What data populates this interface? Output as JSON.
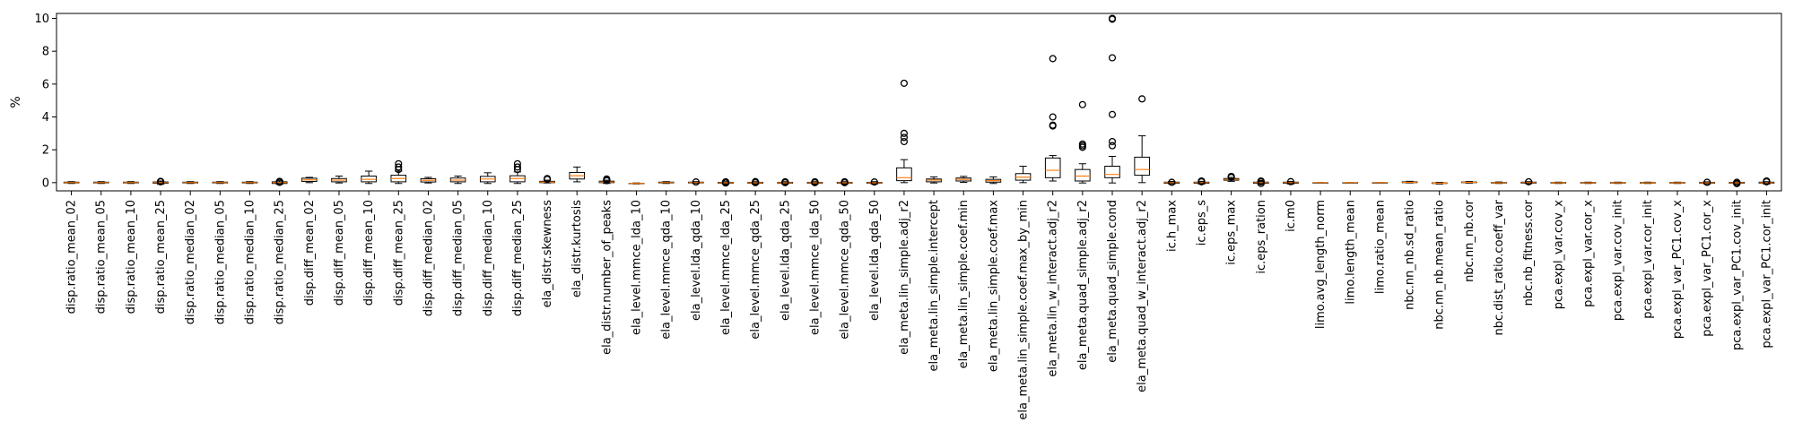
{
  "chart_data": {
    "type": "box",
    "ylabel": "%",
    "ylim": [
      -0.5,
      10.3
    ],
    "yticks": [
      0,
      2,
      4,
      6,
      8,
      10
    ],
    "grid": false,
    "colors": {
      "box": "#000000",
      "median": "#ff7f0e",
      "flier": "#000000"
    },
    "categories": [
      "disp.ratio_mean_02",
      "disp.ratio_mean_05",
      "disp.ratio_mean_10",
      "disp.ratio_mean_25",
      "disp.ratio_median_02",
      "disp.ratio_median_05",
      "disp.ratio_median_10",
      "disp.ratio_median_25",
      "disp.diff_mean_02",
      "disp.diff_mean_05",
      "disp.diff_mean_10",
      "disp.diff_mean_25",
      "disp.diff_median_02",
      "disp.diff_median_05",
      "disp.diff_median_10",
      "disp.diff_median_25",
      "ela_distr.skewness",
      "ela_distr.kurtosis",
      "ela_distr.number_of_peaks",
      "ela_level.mmce_lda_10",
      "ela_level.mmce_qda_10",
      "ela_level.lda_qda_10",
      "ela_level.mmce_lda_25",
      "ela_level.mmce_qda_25",
      "ela_level.lda_qda_25",
      "ela_level.mmce_lda_50",
      "ela_level.mmce_qda_50",
      "ela_level.lda_qda_50",
      "ela_meta.lin_simple.adj_r2",
      "ela_meta.lin_simple.intercept",
      "ela_meta.lin_simple.coef.min",
      "ela_meta.lin_simple.coef.max",
      "ela_meta.lin_simple.coef.max_by_min",
      "ela_meta.lin_w_interact.adj_r2",
      "ela_meta.quad_simple.adj_r2",
      "ela_meta.quad_simple.cond",
      "ela_meta.quad_w_interact.adj_r2",
      "ic.h_max",
      "ic.eps_s",
      "ic.eps_max",
      "ic.eps_ration",
      "ic.m0",
      "limo.avg_length_norm",
      "limo.length_mean",
      "limo.ratio_mean",
      "nbc.nn_nb.sd_ratio",
      "nbc.nn_nb.mean_ratio",
      "nbc.nn_nb.cor",
      "nbc.dist_ratio.coeff_var",
      "nbc.nb_fitness.cor",
      "pca.expl_var.cov_x",
      "pca.expl_var.cor_x",
      "pca.expl_var.cov_init",
      "pca.expl_var.cor_init",
      "pca.expl_var_PC1.cov_x",
      "pca.expl_var_PC1.cor_x",
      "pca.expl_var_PC1.cov_init",
      "pca.expl_var_PC1.cor_init"
    ],
    "boxes": [
      {
        "whislo": -0.05,
        "q1": -0.02,
        "med": 0.0,
        "q3": 0.03,
        "whishi": 0.06,
        "fliers": []
      },
      {
        "whislo": -0.05,
        "q1": -0.02,
        "med": 0.0,
        "q3": 0.03,
        "whishi": 0.06,
        "fliers": []
      },
      {
        "whislo": -0.05,
        "q1": -0.02,
        "med": 0.0,
        "q3": 0.03,
        "whishi": 0.06,
        "fliers": []
      },
      {
        "whislo": -0.1,
        "q1": -0.04,
        "med": 0.0,
        "q3": 0.04,
        "whishi": 0.1,
        "fliers": [
          0.08,
          0.05
        ]
      },
      {
        "whislo": -0.05,
        "q1": -0.02,
        "med": 0.0,
        "q3": 0.03,
        "whishi": 0.06,
        "fliers": []
      },
      {
        "whislo": -0.05,
        "q1": -0.02,
        "med": 0.0,
        "q3": 0.03,
        "whishi": 0.06,
        "fliers": []
      },
      {
        "whislo": -0.05,
        "q1": -0.02,
        "med": 0.0,
        "q3": 0.03,
        "whishi": 0.06,
        "fliers": []
      },
      {
        "whislo": -0.1,
        "q1": -0.05,
        "med": 0.0,
        "q3": 0.05,
        "whishi": 0.12,
        "fliers": [
          0.08,
          0.02
        ]
      },
      {
        "whislo": 0.0,
        "q1": 0.07,
        "med": 0.17,
        "q3": 0.27,
        "whishi": 0.32,
        "fliers": []
      },
      {
        "whislo": -0.02,
        "q1": 0.05,
        "med": 0.15,
        "q3": 0.25,
        "whishi": 0.4,
        "fliers": []
      },
      {
        "whislo": -0.05,
        "q1": 0.05,
        "med": 0.2,
        "q3": 0.4,
        "whishi": 0.7,
        "fliers": []
      },
      {
        "whislo": -0.05,
        "q1": 0.05,
        "med": 0.25,
        "q3": 0.45,
        "whishi": 0.7,
        "fliers": [
          1.15,
          0.95,
          0.8
        ]
      },
      {
        "whislo": -0.02,
        "q1": 0.04,
        "med": 0.14,
        "q3": 0.24,
        "whishi": 0.32,
        "fliers": []
      },
      {
        "whislo": -0.05,
        "q1": 0.05,
        "med": 0.15,
        "q3": 0.28,
        "whishi": 0.4,
        "fliers": []
      },
      {
        "whislo": -0.05,
        "q1": 0.05,
        "med": 0.22,
        "q3": 0.38,
        "whishi": 0.6,
        "fliers": []
      },
      {
        "whislo": -0.05,
        "q1": 0.05,
        "med": 0.25,
        "q3": 0.42,
        "whishi": 0.65,
        "fliers": [
          1.15,
          0.95,
          0.8
        ]
      },
      {
        "whislo": -0.02,
        "q1": 0.0,
        "med": 0.03,
        "q3": 0.08,
        "whishi": 0.15,
        "fliers": [
          0.25,
          0.2
        ]
      },
      {
        "whislo": 0.05,
        "q1": 0.22,
        "med": 0.42,
        "q3": 0.62,
        "whishi": 0.95,
        "fliers": []
      },
      {
        "whislo": -0.05,
        "q1": 0.0,
        "med": 0.04,
        "q3": 0.09,
        "whishi": 0.15,
        "fliers": [
          0.22,
          0.18,
          0.12
        ]
      },
      {
        "whislo": -0.08,
        "q1": -0.06,
        "med": -0.05,
        "q3": -0.04,
        "whishi": -0.02,
        "fliers": []
      },
      {
        "whislo": -0.05,
        "q1": -0.02,
        "med": 0.0,
        "q3": 0.03,
        "whishi": 0.06,
        "fliers": []
      },
      {
        "whislo": -0.05,
        "q1": -0.02,
        "med": 0.0,
        "q3": 0.03,
        "whishi": 0.06,
        "fliers": [
          0.04
        ]
      },
      {
        "whislo": -0.08,
        "q1": -0.04,
        "med": -0.01,
        "q3": 0.02,
        "whishi": 0.06,
        "fliers": [
          0.05,
          -0.02
        ]
      },
      {
        "whislo": -0.08,
        "q1": -0.04,
        "med": -0.01,
        "q3": 0.02,
        "whishi": 0.06,
        "fliers": [
          0.06,
          0.0
        ]
      },
      {
        "whislo": -0.08,
        "q1": -0.04,
        "med": -0.01,
        "q3": 0.02,
        "whishi": 0.06,
        "fliers": [
          0.05,
          0.0
        ]
      },
      {
        "whislo": -0.08,
        "q1": -0.04,
        "med": -0.01,
        "q3": 0.02,
        "whishi": 0.06,
        "fliers": [
          0.05,
          0.0
        ]
      },
      {
        "whislo": -0.08,
        "q1": -0.04,
        "med": -0.01,
        "q3": 0.02,
        "whishi": 0.06,
        "fliers": [
          0.05,
          0.0
        ]
      },
      {
        "whislo": -0.08,
        "q1": -0.04,
        "med": -0.01,
        "q3": 0.02,
        "whishi": 0.06,
        "fliers": [
          0.04
        ]
      },
      {
        "whislo": 0.0,
        "q1": 0.12,
        "med": 0.3,
        "q3": 0.9,
        "whishi": 1.4,
        "fliers": [
          6.05,
          3.0,
          2.75,
          2.5
        ]
      },
      {
        "whislo": -0.02,
        "q1": 0.05,
        "med": 0.15,
        "q3": 0.22,
        "whishi": 0.35,
        "fliers": []
      },
      {
        "whislo": 0.02,
        "q1": 0.1,
        "med": 0.2,
        "q3": 0.28,
        "whishi": 0.38,
        "fliers": []
      },
      {
        "whislo": -0.05,
        "q1": 0.03,
        "med": 0.12,
        "q3": 0.2,
        "whishi": 0.35,
        "fliers": []
      },
      {
        "whislo": 0.0,
        "q1": 0.15,
        "med": 0.33,
        "q3": 0.55,
        "whishi": 1.0,
        "fliers": []
      },
      {
        "whislo": 0.1,
        "q1": 0.3,
        "med": 0.75,
        "q3": 1.5,
        "whishi": 1.65,
        "fliers": [
          7.55,
          4.0,
          3.5,
          3.45
        ]
      },
      {
        "whislo": -0.02,
        "q1": 0.1,
        "med": 0.4,
        "q3": 0.8,
        "whishi": 1.15,
        "fliers": [
          4.75,
          2.35,
          2.25,
          2.15
        ]
      },
      {
        "whislo": -0.02,
        "q1": 0.3,
        "med": 0.5,
        "q3": 1.0,
        "whishi": 1.6,
        "fliers": [
          10.0,
          9.95,
          7.6,
          4.15,
          2.5,
          2.25
        ]
      },
      {
        "whislo": 0.0,
        "q1": 0.45,
        "med": 0.8,
        "q3": 1.55,
        "whishi": 2.85,
        "fliers": [
          5.1
        ]
      },
      {
        "whislo": -0.08,
        "q1": -0.04,
        "med": 0.0,
        "q3": 0.03,
        "whishi": 0.07,
        "fliers": [
          0.02
        ]
      },
      {
        "whislo": -0.08,
        "q1": -0.04,
        "med": 0.0,
        "q3": 0.03,
        "whishi": 0.08,
        "fliers": [
          0.1,
          0.05
        ]
      },
      {
        "whislo": 0.08,
        "q1": 0.15,
        "med": 0.2,
        "q3": 0.25,
        "whishi": 0.32,
        "fliers": [
          0.38,
          0.32
        ]
      },
      {
        "whislo": -0.08,
        "q1": -0.04,
        "med": 0.0,
        "q3": 0.03,
        "whishi": 0.07,
        "fliers": [
          0.1,
          0.05,
          -0.05
        ]
      },
      {
        "whislo": -0.08,
        "q1": -0.04,
        "med": 0.0,
        "q3": 0.03,
        "whishi": 0.07,
        "fliers": [
          0.06
        ]
      },
      {
        "whislo": 0.0,
        "q1": 0.0,
        "med": 0.0,
        "q3": 0.0,
        "whishi": 0.0,
        "fliers": []
      },
      {
        "whislo": 0.0,
        "q1": 0.0,
        "med": 0.0,
        "q3": 0.0,
        "whishi": 0.0,
        "fliers": []
      },
      {
        "whislo": 0.0,
        "q1": 0.0,
        "med": 0.0,
        "q3": 0.0,
        "whishi": 0.0,
        "fliers": []
      },
      {
        "whislo": -0.02,
        "q1": 0.0,
        "med": 0.02,
        "q3": 0.05,
        "whishi": 0.08,
        "fliers": []
      },
      {
        "whislo": -0.08,
        "q1": -0.05,
        "med": -0.03,
        "q3": -0.01,
        "whishi": 0.02,
        "fliers": []
      },
      {
        "whislo": -0.03,
        "q1": 0.0,
        "med": 0.02,
        "q3": 0.04,
        "whishi": 0.07,
        "fliers": []
      },
      {
        "whislo": -0.05,
        "q1": -0.03,
        "med": -0.01,
        "q3": 0.01,
        "whishi": 0.04,
        "fliers": []
      },
      {
        "whislo": -0.06,
        "q1": -0.03,
        "med": 0.0,
        "q3": 0.03,
        "whishi": 0.06,
        "fliers": [
          0.05
        ]
      },
      {
        "whislo": -0.05,
        "q1": -0.03,
        "med": -0.01,
        "q3": 0.01,
        "whishi": 0.03,
        "fliers": []
      },
      {
        "whislo": -0.05,
        "q1": -0.03,
        "med": -0.01,
        "q3": 0.01,
        "whishi": 0.03,
        "fliers": []
      },
      {
        "whislo": -0.05,
        "q1": -0.03,
        "med": -0.01,
        "q3": 0.01,
        "whishi": 0.03,
        "fliers": []
      },
      {
        "whislo": -0.05,
        "q1": -0.03,
        "med": -0.01,
        "q3": 0.01,
        "whishi": 0.03,
        "fliers": []
      },
      {
        "whislo": -0.05,
        "q1": -0.03,
        "med": -0.01,
        "q3": 0.01,
        "whishi": 0.03,
        "fliers": []
      },
      {
        "whislo": -0.08,
        "q1": -0.04,
        "med": -0.01,
        "q3": 0.02,
        "whishi": 0.05,
        "fliers": [
          0.02
        ]
      },
      {
        "whislo": -0.08,
        "q1": -0.04,
        "med": -0.01,
        "q3": 0.02,
        "whishi": 0.05,
        "fliers": [
          0.02,
          -0.06
        ]
      },
      {
        "whislo": -0.08,
        "q1": -0.04,
        "med": -0.01,
        "q3": 0.03,
        "whishi": 0.06,
        "fliers": [
          0.1,
          0.05
        ]
      }
    ]
  }
}
